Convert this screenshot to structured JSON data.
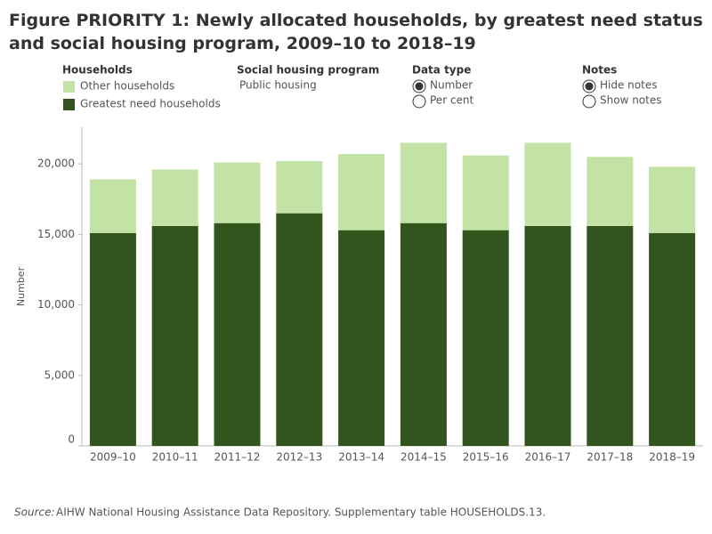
{
  "chart_data": {
    "type": "stacked-bar",
    "title": "Figure PRIORITY 1: Newly allocated households, by greatest need status and social housing program, 2009–10 to 2018–19",
    "legend_title": "Households",
    "ylabel": "Number",
    "categories": [
      "2009–10",
      "2010–11",
      "2011–12",
      "2012–13",
      "2013–14",
      "2014–15",
      "2015–16",
      "2016–17",
      "2017–18",
      "2018–19"
    ],
    "series": [
      {
        "name": "Greatest need households",
        "color": "#31551c",
        "values": [
          15100,
          15600,
          15800,
          16500,
          15300,
          15800,
          15300,
          15600,
          15600,
          15100
        ]
      },
      {
        "name": "Other households",
        "color": "#c3e2a5",
        "values": [
          3800,
          4000,
          4300,
          3700,
          5400,
          5700,
          5300,
          5900,
          4900,
          4700
        ]
      }
    ],
    "ylim": [
      0,
      22600
    ],
    "yticks": [
      0,
      {
        "value": 5000,
        "label": "5,000"
      },
      {
        "value": 10000,
        "label": "10,000"
      },
      {
        "value": 15000,
        "label": "15,000"
      },
      {
        "value": 20000,
        "label": "20,000"
      }
    ],
    "grid": false,
    "source_label": "Source:",
    "source": "AIHW National Housing Assistance Data Repository. Supplementary table HOUSEHOLDS.13."
  },
  "controls": [
    {
      "label": "Social housing program",
      "options": [
        "Public housing"
      ]
    },
    {
      "label": "Data type",
      "options": [
        "Number",
        "Per cent"
      ],
      "selected": 0
    },
    {
      "label": "Notes",
      "options": [
        "Hide notes",
        "Show notes"
      ],
      "selected": 0
    }
  ]
}
